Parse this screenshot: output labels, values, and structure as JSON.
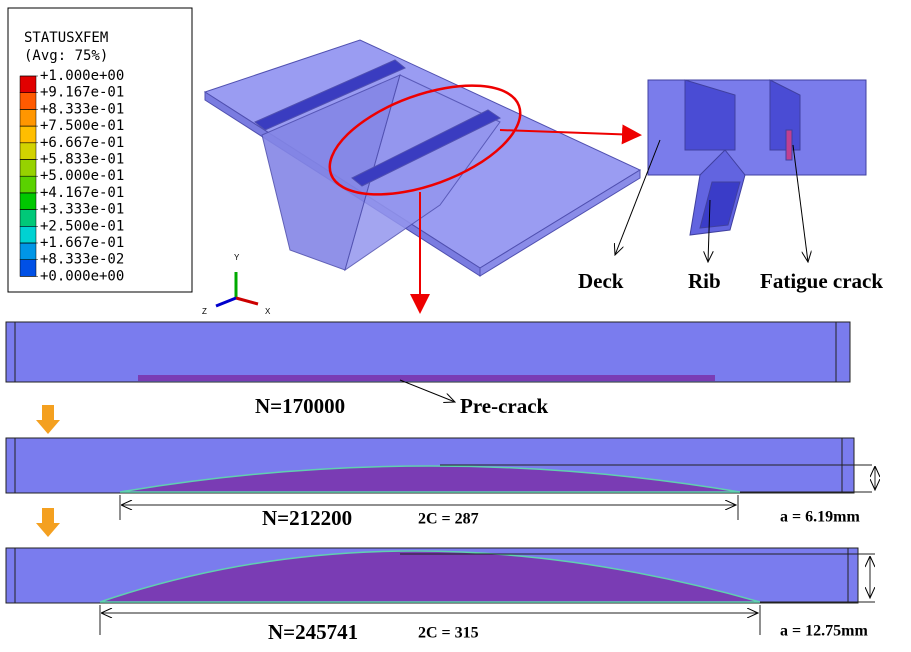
{
  "legend": {
    "title": "STATUSXFEM",
    "subtitle": "(Avg: 75%)",
    "labels": [
      "+1.000e+00",
      "+9.167e-01",
      "+8.333e-01",
      "+7.500e-01",
      "+6.667e-01",
      "+5.833e-01",
      "+5.000e-01",
      "+4.167e-01",
      "+3.333e-01",
      "+2.500e-01",
      "+1.667e-01",
      "+8.333e-02",
      "+0.000e+00"
    ],
    "colors": [
      "#e10000",
      "#ff5a00",
      "#ff9600",
      "#ffbe00",
      "#d2d200",
      "#96d200",
      "#5ad200",
      "#00c800",
      "#00c878",
      "#00d2d2",
      "#0096e6",
      "#0050e6",
      "#0000c0"
    ]
  },
  "axes": {
    "y": "Y",
    "z": "Z",
    "x": "X"
  },
  "inset": {
    "deck": "Deck",
    "rib": "Rib",
    "crack": "Fatigue crack"
  },
  "stages": [
    {
      "cycles": "N=170000",
      "note": "Pre-crack"
    },
    {
      "cycles": "N=212200",
      "length": "2C = 287",
      "depth": "a = 6.19mm"
    },
    {
      "cycles": "N=245741",
      "length": "2C = 315",
      "depth": "a = 12.75mm"
    }
  ]
}
